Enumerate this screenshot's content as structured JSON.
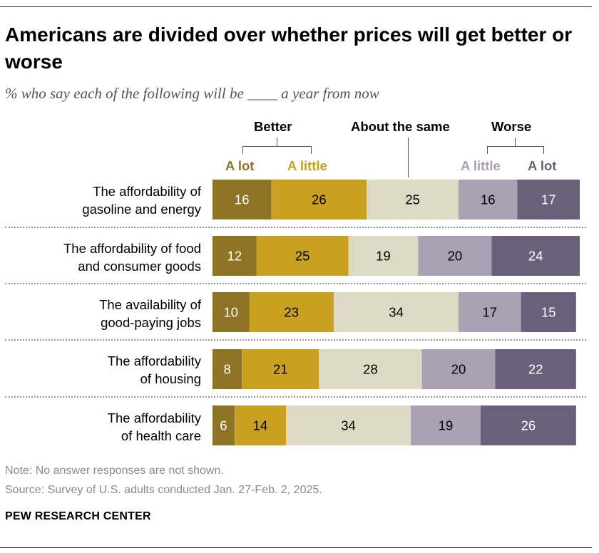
{
  "title": "Americans are divided over whether prices will get better or worse",
  "subtitle": "% who say each of the following will be ____ a year from now",
  "headers": {
    "better": "Better",
    "same": "About the same",
    "worse": "Worse",
    "better_alot": "A lot",
    "better_alittle": "A little",
    "worse_alittle": "A little",
    "worse_alot": "A lot"
  },
  "colors": {
    "better_alot": "#8c7424",
    "better_alittle": "#c9a020",
    "same": "#ded9c3",
    "worse_alittle": "#aa9fb3",
    "worse_alot": "#6c5f7c"
  },
  "chart_data": {
    "type": "bar",
    "orientation": "horizontal",
    "stacked": true,
    "categories": [
      "The affordability of gasoline and energy",
      "The affordability of food and consumer goods",
      "The availability of good-paying jobs",
      "The affordability of housing",
      "The affordability of health care"
    ],
    "category_lines": [
      [
        "The affordability of",
        "gasoline and energy"
      ],
      [
        "The affordability of food",
        "and consumer goods"
      ],
      [
        "The availability of",
        "good-paying jobs"
      ],
      [
        "The affordability",
        "of housing"
      ],
      [
        "The affordability",
        "of health care"
      ]
    ],
    "series": [
      {
        "name": "Better: A lot",
        "values": [
          16,
          12,
          10,
          8,
          6
        ]
      },
      {
        "name": "Better: A little",
        "values": [
          26,
          25,
          23,
          21,
          14
        ]
      },
      {
        "name": "About the same",
        "values": [
          25,
          19,
          34,
          28,
          34
        ]
      },
      {
        "name": "Worse: A little",
        "values": [
          16,
          20,
          17,
          20,
          19
        ]
      },
      {
        "name": "Worse: A lot",
        "values": [
          17,
          24,
          15,
          22,
          26
        ]
      }
    ]
  },
  "note": "Note: No answer responses are not shown.",
  "source": "Source: Survey of U.S. adults conducted Jan. 27-Feb. 2, 2025.",
  "org": "PEW RESEARCH CENTER"
}
